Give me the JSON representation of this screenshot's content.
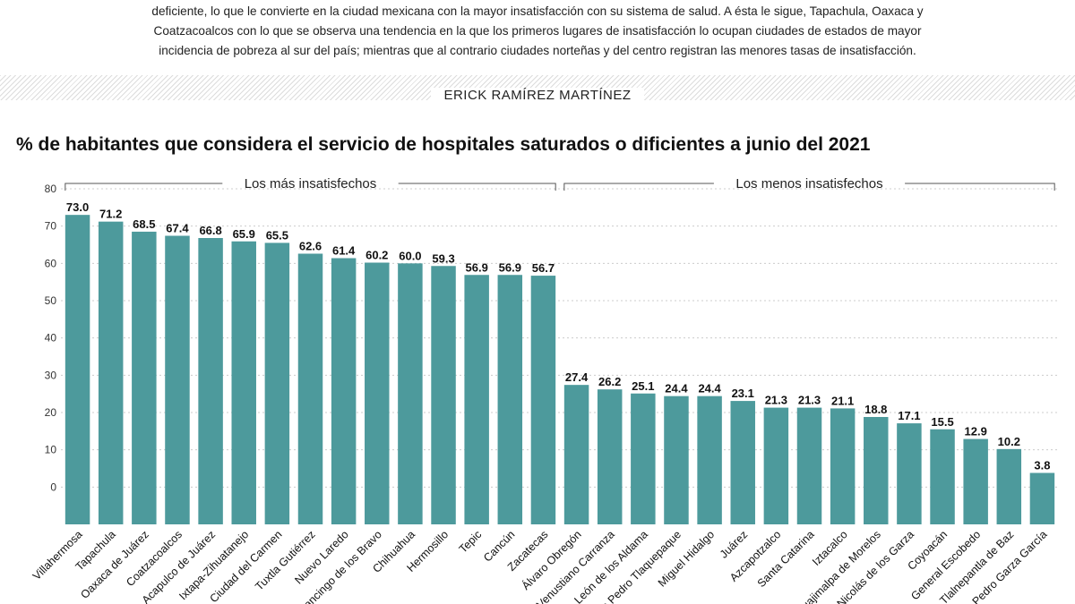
{
  "intro": {
    "lines": [
      "deficiente, lo que le convierte en la ciudad mexicana con la mayor insatisfacción con su sistema de salud. A ésta le sigue, Tapachula, Oaxaca y",
      "Coatzacoalcos con lo que se observa una tendencia en la que los primeros lugares de insatisfacción lo ocupan ciudades de estados de mayor",
      "incidencia de pobreza al sur del país; mientras que al contrario ciudades norteñas y del centro registran las menores tasas de insatisfacción."
    ]
  },
  "byline": "ERICK RAMÍREZ MARTÍNEZ",
  "colors": {
    "bar": "#4d9a9c",
    "grid": "#cccccc",
    "text": "#1a1a1a"
  },
  "chart_data": {
    "type": "bar",
    "title": "% de habitantes que considera el servicio de hospitales saturados o dificientes a junio del 2021",
    "xlabel": "",
    "ylabel": "",
    "ylim": [
      -10,
      80
    ],
    "yticks": [
      80,
      70,
      60,
      50,
      40,
      30,
      20,
      10,
      0
    ],
    "grid": true,
    "groups": [
      {
        "label": "Los más insatisfechos",
        "from": 0,
        "to": 14
      },
      {
        "label": "Los menos insatisfechos",
        "from": 15,
        "to": 29
      }
    ],
    "categories": [
      "Villahermosa",
      "Tapachula",
      "Oaxaca de Juárez",
      "Coatzacoalcos",
      "Acapulco de Juárez",
      "Ixtapa-Zihuatanejo",
      "Ciudad del Carmen",
      "Tuxtla Gutiérrez",
      "Nuevo Laredo",
      "Chilpancingo de los Bravo",
      "Chihuahua",
      "Hermosillo",
      "Tepic",
      "Cancún",
      "Zacatecas",
      "Álvaro Obregón",
      "Venustiano Carranza",
      "León de los Aldama",
      "San Pedro Tlaquepaque",
      "Miguel Hidalgo",
      "Juárez",
      "Azcapotzalco",
      "Santa Catarina",
      "Iztacalco",
      "Cuajimalpa de Morelos",
      "San Nicolás de los Garza",
      "Coyoacán",
      "General Escobedo",
      "Tlalnepantla de Baz",
      "San Pedro Garza García"
    ],
    "values": [
      73.0,
      71.2,
      68.5,
      67.4,
      66.8,
      65.9,
      65.5,
      62.6,
      61.4,
      60.2,
      60.0,
      59.3,
      56.9,
      56.9,
      56.7,
      27.4,
      26.2,
      25.1,
      24.4,
      24.4,
      23.1,
      21.3,
      21.3,
      21.1,
      18.8,
      17.1,
      15.5,
      12.9,
      10.2,
      3.8
    ]
  }
}
